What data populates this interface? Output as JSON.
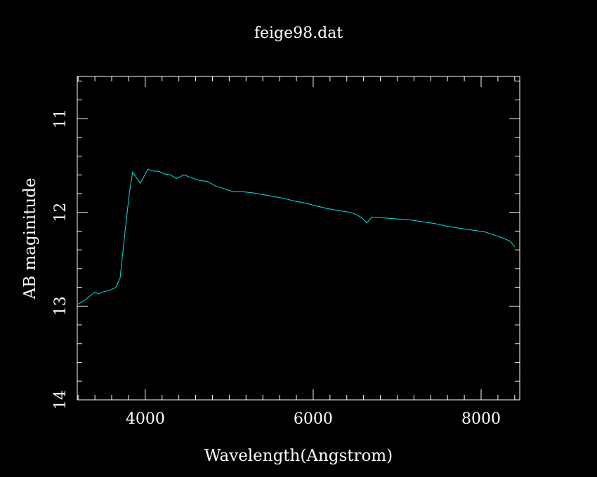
{
  "colors": {
    "background": "#000000",
    "axes": "#ffffff",
    "series": "#00e5e5"
  },
  "chart_data": {
    "type": "line",
    "title": "feige98.dat",
    "xlabel": "Wavelength(Angstrom)",
    "ylabel": "AB maginitude",
    "xlim": [
      3190,
      8460
    ],
    "ylim": [
      14,
      10.55
    ],
    "y_inverted": true,
    "grid": false,
    "x_ticks": [
      4000,
      6000,
      8000
    ],
    "y_ticks": [
      11,
      12,
      13,
      14
    ],
    "x_tick_labels": [
      "4000",
      "6000",
      "8000"
    ],
    "y_tick_labels": [
      "11",
      "12",
      "13",
      "14"
    ],
    "series": [
      {
        "x": [
          3200,
          3290,
          3400,
          3440,
          3490,
          3580,
          3650,
          3700,
          3760,
          3810,
          3850,
          3940,
          4030,
          4100,
          4160,
          4230,
          4300,
          4370,
          4460,
          4550,
          4650,
          4740,
          4840,
          4950,
          5050,
          5160,
          5270,
          5400,
          5520,
          5650,
          5780,
          5900,
          6030,
          6170,
          6300,
          6450,
          6530,
          6580,
          6640,
          6700,
          6850,
          7000,
          7150,
          7300,
          7450,
          7600,
          7750,
          7900,
          8050,
          8150,
          8250,
          8350,
          8400
        ],
        "y": [
          12.98,
          12.93,
          12.85,
          12.87,
          12.85,
          12.83,
          12.8,
          12.7,
          12.2,
          11.8,
          11.57,
          11.69,
          11.54,
          11.56,
          11.56,
          11.59,
          11.6,
          11.64,
          11.6,
          11.63,
          11.66,
          11.67,
          11.72,
          11.75,
          11.78,
          11.78,
          11.79,
          11.81,
          11.83,
          11.85,
          11.88,
          11.9,
          11.93,
          11.96,
          11.98,
          12.0,
          12.03,
          12.06,
          12.11,
          12.05,
          12.06,
          12.07,
          12.08,
          12.1,
          12.12,
          12.15,
          12.17,
          12.19,
          12.21,
          12.24,
          12.27,
          12.31,
          12.37
        ]
      }
    ]
  }
}
